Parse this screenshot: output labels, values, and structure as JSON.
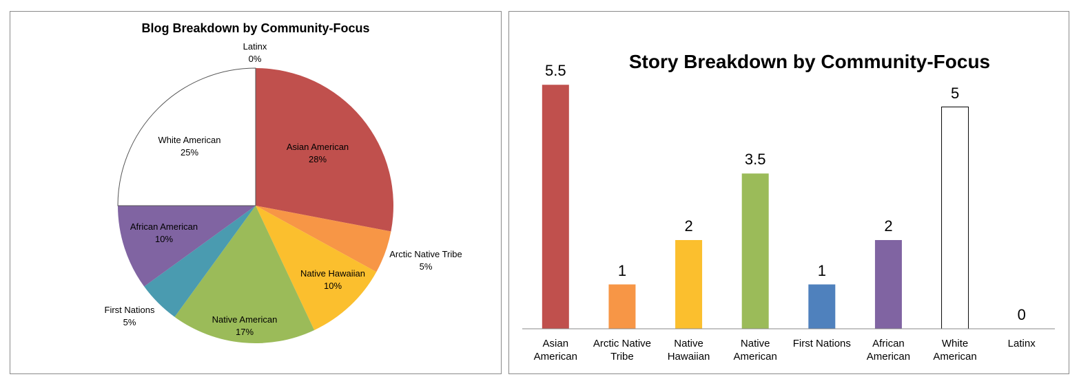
{
  "chart_data": [
    {
      "type": "pie",
      "title": "Blog Breakdown by Community-Focus",
      "categories": [
        "Asian American",
        "Arctic Native Tribe",
        "Native Hawaiian",
        "Native American",
        "First Nations",
        "African American",
        "White American",
        "Latinx"
      ],
      "values": [
        28,
        5,
        10,
        17,
        5,
        10,
        25,
        0
      ],
      "value_labels": [
        "28%",
        "5%",
        "10%",
        "17%",
        "5%",
        "10%",
        "25%",
        "0%"
      ],
      "colors": [
        "#c0504d",
        "#f79646",
        "#fbbf2e",
        "#9bbb59",
        "#4a9bb0",
        "#8064a2",
        "#ffffff",
        "#4f81bd"
      ]
    },
    {
      "type": "bar",
      "title": "Story Breakdown by Community-Focus",
      "categories": [
        "Asian American",
        "Arctic Native Tribe",
        "Native Hawaiian",
        "Native American",
        "First Nations",
        "African American",
        "White American",
        "Latinx"
      ],
      "values": [
        5.5,
        1,
        2,
        3.5,
        1,
        2,
        5,
        0
      ],
      "colors": [
        "#c0504d",
        "#f79646",
        "#fbbf2e",
        "#9bbb59",
        "#4f81bd",
        "#8064a2",
        "#ffffff",
        "#4f81bd"
      ],
      "ylim": [
        0,
        6
      ]
    }
  ]
}
